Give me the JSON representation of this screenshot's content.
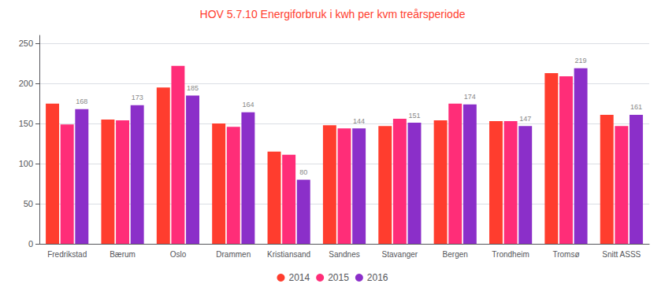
{
  "chart_data": {
    "type": "bar",
    "title": "HOV 5.7.10 Energiforbruk i kwh per kvm treårsperiode",
    "categories": [
      "Fredrikstad",
      "Bærum",
      "Oslo",
      "Drammen",
      "Kristiansand",
      "Sandnes",
      "Stavanger",
      "Bergen",
      "Trondheim",
      "Tromsø",
      "Snitt ASSS"
    ],
    "series": [
      {
        "name": "2014",
        "color": "#FF3D2E",
        "values": [
          175,
          155,
          195,
          150,
          115,
          148,
          147,
          154,
          153,
          213,
          161
        ]
      },
      {
        "name": "2015",
        "color": "#FF2D78",
        "values": [
          149,
          154,
          222,
          146,
          111,
          144,
          156,
          175,
          153,
          209,
          147
        ]
      },
      {
        "name": "2016",
        "color": "#8B2FC9",
        "values": [
          168,
          173,
          185,
          164,
          80,
          144,
          151,
          174,
          147,
          219,
          161
        ],
        "data_labels": true
      }
    ],
    "ylim": [
      0,
      260
    ],
    "yticks": [
      0,
      50,
      100,
      150,
      200,
      250
    ],
    "grid": true,
    "legend": "bottom"
  }
}
